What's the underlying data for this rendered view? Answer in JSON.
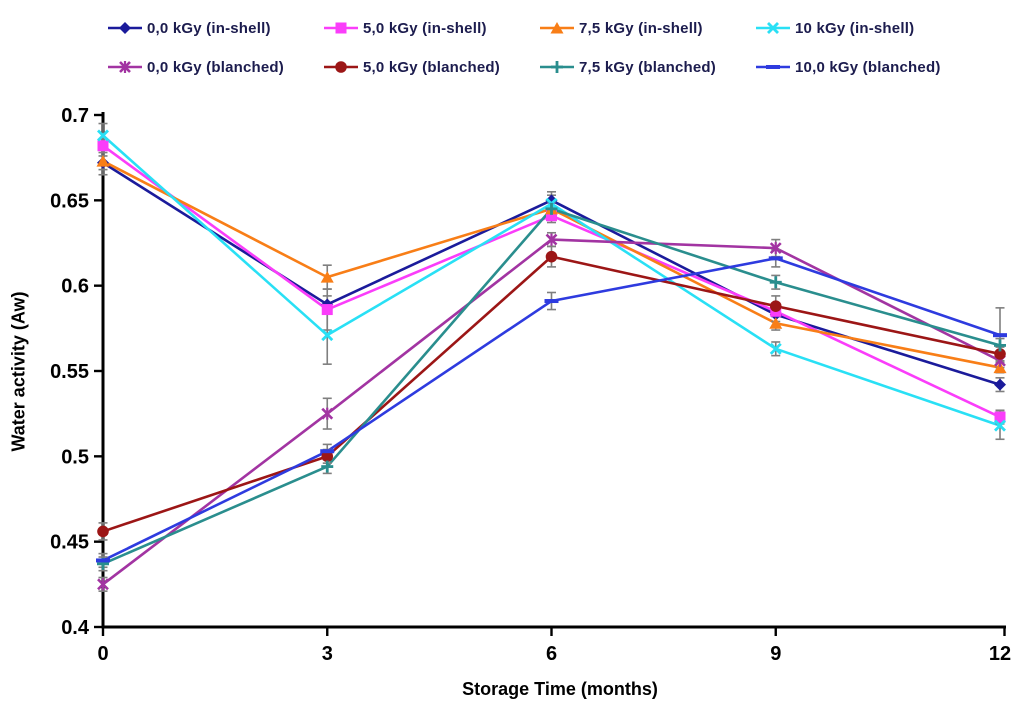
{
  "chart_data": {
    "type": "line",
    "title": "",
    "xlabel": "Storage Time (months)",
    "ylabel": "Water activity (Aw)",
    "x": [
      0,
      3,
      6,
      9,
      12
    ],
    "x_tick_labels": [
      "0",
      "3",
      "6",
      "9",
      "12"
    ],
    "xlim": [
      0,
      12
    ],
    "y_ticks": [
      0.4,
      0.45,
      0.5,
      0.55,
      0.6,
      0.65,
      0.7
    ],
    "y_tick_labels": [
      "0.4",
      "0.45",
      "0.5",
      "0.55",
      "0.6",
      "0.65",
      "0.7"
    ],
    "ylim": [
      0.4,
      0.7
    ],
    "grid": false,
    "legend_position": "top",
    "axis_color": "#000000",
    "error_bar_color": "#7f7f7f",
    "series": [
      {
        "name": "0,0 kGy (in-shell)",
        "color": "#1b1b9b",
        "marker": "diamond",
        "values": [
          0.672,
          0.589,
          0.65,
          0.583,
          0.542
        ],
        "errors": [
          0.004,
          0.005,
          0.005,
          0.004,
          0.004
        ]
      },
      {
        "name": "5,0 kGy (in-shell)",
        "color": "#fa3dfa",
        "marker": "square",
        "values": [
          0.682,
          0.586,
          0.641,
          0.585,
          0.523
        ],
        "errors": [
          0.004,
          0.012,
          0.004,
          0.003,
          0.004
        ]
      },
      {
        "name": "7,5 kGy (in-shell)",
        "color": "#f87e17",
        "marker": "triangle",
        "values": [
          0.673,
          0.605,
          0.645,
          0.578,
          0.552
        ],
        "errors": [
          0.008,
          0.007,
          0.004,
          0.004,
          0.003
        ]
      },
      {
        "name": "10 kGy (in-shell)",
        "color": "#29e0f5",
        "marker": "x",
        "values": [
          0.688,
          0.571,
          0.648,
          0.563,
          0.518
        ],
        "errors": [
          0.007,
          0.017,
          0.005,
          0.004,
          0.008
        ]
      },
      {
        "name": "0,0 kGy (blanched)",
        "color": "#a234a2",
        "marker": "star",
        "values": [
          0.425,
          0.525,
          0.627,
          0.622,
          0.556
        ],
        "errors": [
          0.004,
          0.009,
          0.004,
          0.005,
          0.004
        ]
      },
      {
        "name": "5,0 kGy (blanched)",
        "color": "#9c1616",
        "marker": "circle",
        "values": [
          0.456,
          0.5,
          0.617,
          0.588,
          0.56
        ],
        "errors": [
          0.005,
          0.004,
          0.006,
          0.006,
          0.004
        ]
      },
      {
        "name": "7,5 kGy (blanched)",
        "color": "#2a8e8e",
        "marker": "plus",
        "values": [
          0.437,
          0.494,
          0.645,
          0.602,
          0.565
        ],
        "errors": [
          0.004,
          0.004,
          0.004,
          0.004,
          0.004
        ]
      },
      {
        "name": "10,0 kGy (blanched)",
        "color": "#2e3bdf",
        "marker": "dash",
        "values": [
          0.439,
          0.503,
          0.591,
          0.616,
          0.571
        ],
        "errors": [
          0.004,
          0.004,
          0.005,
          0.005,
          0.016
        ]
      }
    ]
  },
  "layout_text": {
    "x_axis_title": "Storage Time (months)",
    "y_axis_title": "Water activity (Aw)"
  }
}
